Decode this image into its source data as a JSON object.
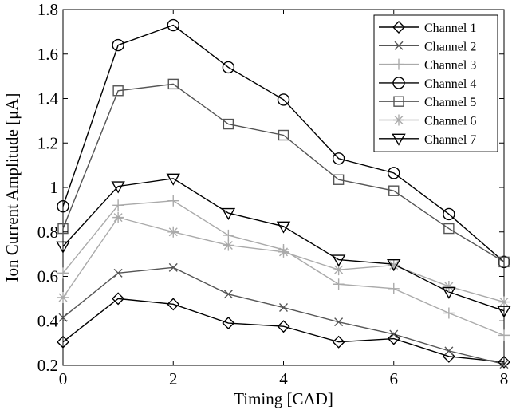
{
  "chart_data": {
    "type": "line",
    "title": "",
    "xlabel": "Timing [CAD]",
    "ylabel": "Ion Current Amplitude [μA]",
    "xlim": [
      0,
      8
    ],
    "ylim": [
      0.2,
      1.8
    ],
    "x_ticks": [
      "0",
      "2",
      "4",
      "6",
      "8"
    ],
    "y_ticks": [
      "0.2",
      "0.4",
      "0.6",
      "0.8",
      "1",
      "1.2",
      "1.4",
      "1.6",
      "1.8"
    ],
    "grid": false,
    "legend_position": "top-right",
    "x": [
      0,
      1,
      2,
      3,
      4,
      5,
      6,
      7,
      8
    ],
    "series": [
      {
        "name": "Channel 1",
        "marker": "diamond",
        "color": "#000000",
        "values": [
          0.305,
          0.5,
          0.475,
          0.39,
          0.375,
          0.305,
          0.32,
          0.24,
          0.215
        ]
      },
      {
        "name": "Channel 2",
        "marker": "x",
        "color": "#555555",
        "values": [
          0.415,
          0.615,
          0.64,
          0.52,
          0.46,
          0.395,
          0.34,
          0.265,
          0.205
        ]
      },
      {
        "name": "Channel 3",
        "marker": "plus",
        "color": "#aaaaaa",
        "values": [
          0.615,
          0.92,
          0.94,
          0.785,
          0.72,
          0.565,
          0.545,
          0.435,
          0.335
        ]
      },
      {
        "name": "Channel 4",
        "marker": "circle",
        "color": "#000000",
        "values": [
          0.915,
          1.64,
          1.73,
          1.54,
          1.395,
          1.13,
          1.065,
          0.88,
          0.665
        ]
      },
      {
        "name": "Channel 5",
        "marker": "square",
        "color": "#555555",
        "values": [
          0.815,
          1.435,
          1.465,
          1.285,
          1.235,
          1.035,
          0.985,
          0.815,
          0.665
        ]
      },
      {
        "name": "Channel 6",
        "marker": "asterisk",
        "color": "#aaaaaa",
        "values": [
          0.505,
          0.865,
          0.8,
          0.74,
          0.71,
          0.63,
          0.65,
          0.555,
          0.485
        ]
      },
      {
        "name": "Channel 7",
        "marker": "triangle-down",
        "color": "#000000",
        "values": [
          0.735,
          1.005,
          1.04,
          0.885,
          0.825,
          0.675,
          0.655,
          0.53,
          0.445
        ]
      }
    ]
  }
}
